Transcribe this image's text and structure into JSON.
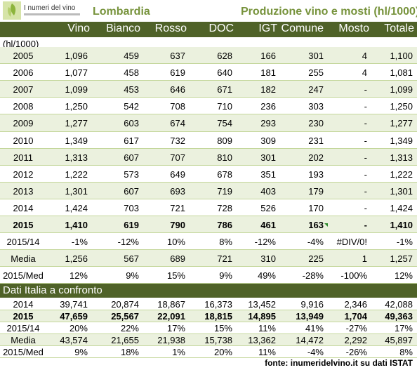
{
  "logo_text": "I numeri del vino",
  "region": "Lombardia",
  "subtitle": "Produzione vino e mosti (hl/1000)",
  "columns": [
    "Vino",
    "Bianco",
    "Rosso",
    "DOC",
    "IGT",
    "Comune",
    "Mosto",
    "Totale"
  ],
  "unit": "(hl/1000)",
  "rows": [
    {
      "label": "2005",
      "values": [
        "1,096",
        "459",
        "637",
        "628",
        "166",
        "301",
        "4",
        "1,100"
      ]
    },
    {
      "label": "2006",
      "values": [
        "1,077",
        "458",
        "619",
        "640",
        "181",
        "255",
        "4",
        "1,081"
      ]
    },
    {
      "label": "2007",
      "values": [
        "1,099",
        "453",
        "646",
        "671",
        "182",
        "247",
        "-",
        "1,099"
      ]
    },
    {
      "label": "2008",
      "values": [
        "1,250",
        "542",
        "708",
        "710",
        "236",
        "303",
        "-",
        "1,250"
      ]
    },
    {
      "label": "2009",
      "values": [
        "1,277",
        "603",
        "674",
        "754",
        "293",
        "230",
        "-",
        "1,277"
      ]
    },
    {
      "label": "2010",
      "values": [
        "1,349",
        "617",
        "732",
        "809",
        "309",
        "231",
        "-",
        "1,349"
      ]
    },
    {
      "label": "2011",
      "values": [
        "1,313",
        "607",
        "707",
        "810",
        "301",
        "202",
        "-",
        "1,313"
      ]
    },
    {
      "label": "2012",
      "values": [
        "1,222",
        "573",
        "649",
        "678",
        "351",
        "193",
        "-",
        "1,222"
      ]
    },
    {
      "label": "2013",
      "values": [
        "1,301",
        "607",
        "693",
        "719",
        "403",
        "179",
        "-",
        "1,301"
      ]
    },
    {
      "label": "2014",
      "values": [
        "1,424",
        "703",
        "721",
        "728",
        "526",
        "170",
        "-",
        "1,424"
      ]
    },
    {
      "label": "2015",
      "values": [
        "1,410",
        "619",
        "790",
        "786",
        "461",
        "163",
        "-",
        "1,410"
      ]
    },
    {
      "label": "2015/14",
      "values": [
        "-1%",
        "-12%",
        "10%",
        "8%",
        "-12%",
        "-4%",
        "#DIV/0!",
        "-1%"
      ]
    },
    {
      "label": "Media",
      "values": [
        "1,256",
        "567",
        "689",
        "721",
        "310",
        "225",
        "1",
        "1,257"
      ]
    },
    {
      "label": "2015/Med",
      "values": [
        "12%",
        "9%",
        "15%",
        "9%",
        "49%",
        "-28%",
        "-100%",
        "12%"
      ]
    }
  ],
  "italy_title": "Dati Italia a confronto",
  "italy_rows": [
    {
      "label": "2014",
      "values": [
        "39,741",
        "20,874",
        "18,867",
        "16,373",
        "13,452",
        "9,916",
        "2,346",
        "42,088"
      ]
    },
    {
      "label": "2015",
      "values": [
        "47,659",
        "25,567",
        "22,091",
        "18,815",
        "14,895",
        "13,949",
        "1,704",
        "49,363"
      ]
    },
    {
      "label": "2015/14",
      "values": [
        "20%",
        "22%",
        "17%",
        "15%",
        "11%",
        "41%",
        "-27%",
        "17%"
      ]
    },
    {
      "label": "Media",
      "values": [
        "43,574",
        "21,655",
        "21,938",
        "15,738",
        "13,362",
        "14,472",
        "2,292",
        "45,897"
      ]
    },
    {
      "label": "2015/Med",
      "values": [
        "9%",
        "18%",
        "1%",
        "20%",
        "11%",
        "-4%",
        "-26%",
        "8%"
      ]
    }
  ],
  "source": "fonte: inumeridelvino.it su dati ISTAT"
}
